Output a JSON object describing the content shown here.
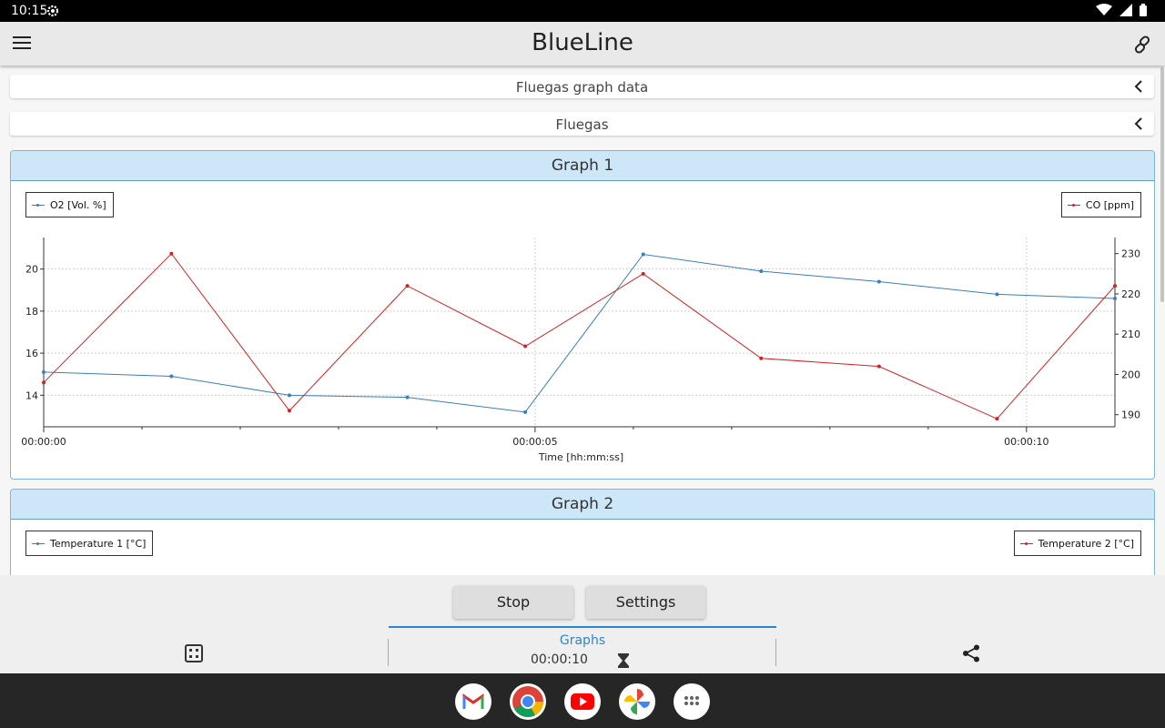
{
  "status": {
    "time": "10:15"
  },
  "app": {
    "title": "BlueLine"
  },
  "sections": [
    {
      "label": "Fluegas graph data"
    },
    {
      "label": "Fluegas"
    }
  ],
  "graph1": {
    "title": "Graph 1",
    "legend_left": "O2 [Vol. %]",
    "legend_right": "CO [ppm]",
    "xlabel": "Time [hh:mm:ss]",
    "x_ticks": [
      "00:00:00",
      "00:00:05",
      "00:00:10"
    ],
    "y_left_ticks": [
      "14",
      "16",
      "18",
      "20"
    ],
    "y_right_ticks": [
      "190",
      "200",
      "210",
      "220",
      "230"
    ]
  },
  "graph2": {
    "title": "Graph 2",
    "legend_left": "Temperature 1 [°C]",
    "legend_right": "Temperature 2 [°C]"
  },
  "chart_data": {
    "type": "line",
    "xlabel": "Time [hh:mm:ss]",
    "x": [
      0,
      1.3,
      2.5,
      3.7,
      4.9,
      6.1,
      7.3,
      8.5,
      9.7,
      10.9
    ],
    "xlim": [
      0,
      10.9
    ],
    "ylim_left": [
      12.5,
      21.5
    ],
    "ylim_right": [
      187,
      234
    ],
    "grid": true,
    "legend": "top-left / top-right",
    "series": [
      {
        "name": "O2 [Vol. %]",
        "axis": "left",
        "color": "#3a7ebf",
        "values": [
          15.1,
          14.9,
          14.0,
          13.9,
          13.2,
          20.7,
          19.9,
          19.4,
          18.8,
          18.6
        ]
      },
      {
        "name": "CO [ppm]",
        "axis": "right",
        "color": "#d42020",
        "values": [
          198,
          230,
          191,
          222,
          207,
          225,
          204,
          202,
          189,
          222
        ]
      }
    ]
  },
  "controls": {
    "stop": "Stop",
    "settings": "Settings"
  },
  "tabs": {
    "graphs": "Graphs",
    "timer": "00:00:10"
  },
  "colors": {
    "accent": "#2a86d0",
    "o2": "#3a7ebf",
    "co": "#d42020"
  }
}
